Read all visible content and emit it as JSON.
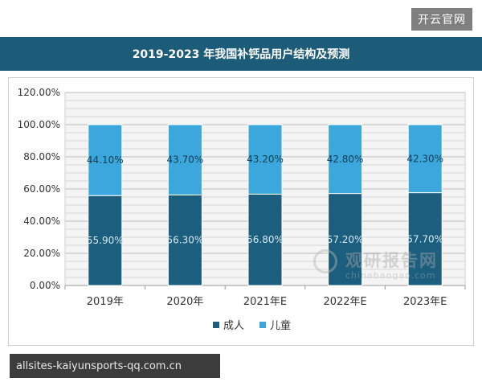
{
  "page": {
    "badge": "开云官网",
    "footer_url": "allsites-kaiyunsports-qq.com.cn"
  },
  "watermark": {
    "cn": "观研报告网",
    "en": "chinabaogao.com"
  },
  "chart_data": {
    "type": "bar",
    "stacked": true,
    "title": "2019-2023 年我国补钙品用户结构及预测",
    "categories": [
      "2019年",
      "2020年",
      "2021年E",
      "2022年E",
      "2023年E"
    ],
    "series": [
      {
        "name": "成人",
        "values": [
          55.9,
          56.3,
          56.8,
          57.2,
          57.7
        ],
        "labels": [
          "55.90%",
          "56.30%",
          "56.80%",
          "57.20%",
          "57.70%"
        ],
        "color": "#1b5e7e"
      },
      {
        "name": "儿童",
        "values": [
          44.1,
          43.7,
          43.2,
          42.8,
          42.3
        ],
        "labels": [
          "44.10%",
          "43.70%",
          "43.20%",
          "42.80%",
          "42.30%"
        ],
        "color": "#3ba7dc"
      }
    ],
    "yticks": [
      "0.00%",
      "20.00%",
      "40.00%",
      "60.00%",
      "80.00%",
      "100.00%",
      "120.00%"
    ],
    "ylim": [
      0,
      120
    ],
    "grid": true,
    "legend": "bottom"
  }
}
